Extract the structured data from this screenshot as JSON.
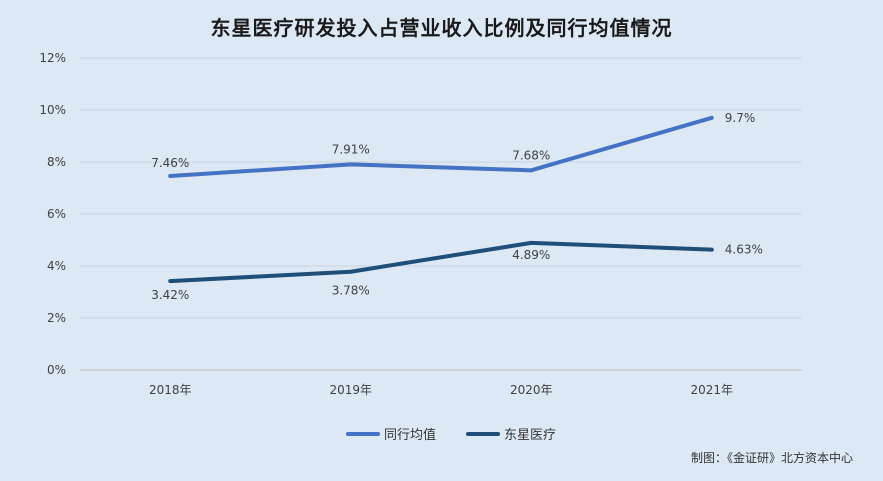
{
  "chart_data": {
    "type": "line",
    "title": "东星医疗研发投入占营业收入比例及同行均值情况",
    "categories": [
      "2018年",
      "2019年",
      "2020年",
      "2021年"
    ],
    "series": [
      {
        "name": "同行均值",
        "color": "#4472c4",
        "values": [
          7.46,
          7.91,
          7.68,
          9.7
        ],
        "labels": [
          "7.46%",
          "7.91%",
          "7.68%",
          "9.7%"
        ]
      },
      {
        "name": "东星医疗",
        "color": "#1f4e79",
        "values": [
          3.42,
          3.78,
          4.89,
          4.63
        ],
        "labels": [
          "3.42%",
          "3.78%",
          "4.89%",
          "4.63%"
        ]
      }
    ],
    "ylim": [
      0,
      12
    ],
    "yticks": [
      "0%",
      "2%",
      "4%",
      "6%",
      "8%",
      "10%",
      "12%"
    ],
    "ytick_values": [
      0,
      2,
      4,
      6,
      8,
      10,
      12
    ],
    "grid": true,
    "legend_position": "bottom"
  },
  "credit": "制图：《金证研》北方资本中心"
}
